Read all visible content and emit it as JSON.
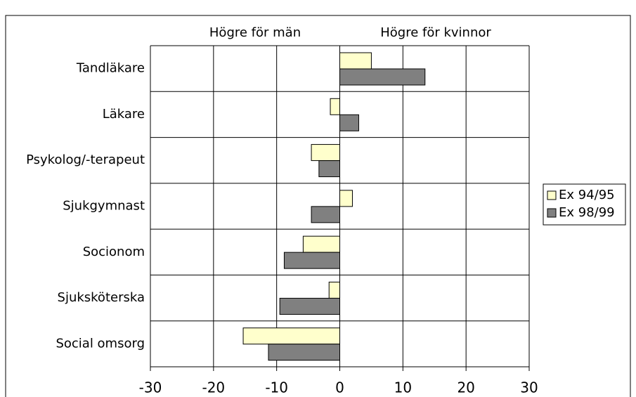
{
  "chart_data": {
    "type": "bar",
    "orientation": "horizontal",
    "annotations": [
      "Högre för män",
      "Högre för kvinnor"
    ],
    "categories": [
      "Tandläkare",
      "Läkare",
      "Psykolog/-terapeut",
      "Sjukgymnast",
      "Socionom",
      "Sjuksköterska",
      "Social omsorg"
    ],
    "series": [
      {
        "name": "Ex 94/95",
        "color": "#ffffcc",
        "values": [
          5,
          -1.5,
          -4.5,
          2,
          -5.8,
          -1.7,
          -15.3
        ]
      },
      {
        "name": "Ex 98/99",
        "color": "#808080",
        "values": [
          13.5,
          3,
          -3.3,
          -4.5,
          -8.8,
          -9.5,
          -11.3
        ]
      }
    ],
    "xlim": [
      -30,
      30
    ],
    "xticks": [
      -30,
      -20,
      -10,
      0,
      10,
      20,
      30
    ],
    "grid": true,
    "legend": "right"
  }
}
